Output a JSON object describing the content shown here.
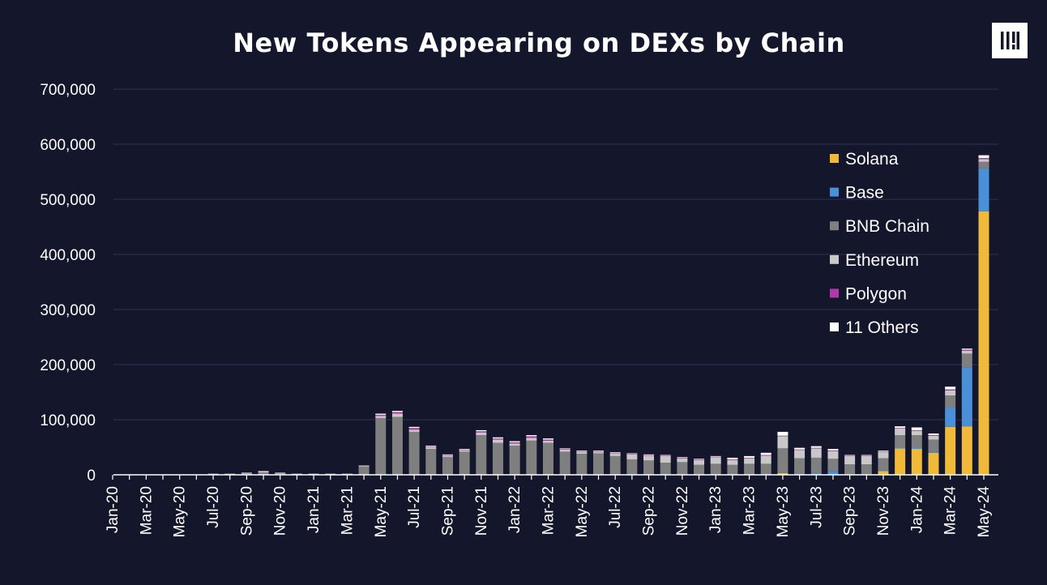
{
  "chart_data": {
    "type": "bar",
    "stacked": true,
    "title": "New Tokens Appearing on DEXs by Chain",
    "xlabel": "",
    "ylabel": "",
    "ylim": [
      0,
      700000
    ],
    "yticks": [
      0,
      100000,
      200000,
      300000,
      400000,
      500000,
      600000,
      700000
    ],
    "ytick_labels": [
      "0",
      "100,000",
      "200,000",
      "300,000",
      "400,000",
      "500,000",
      "600,000",
      "700,000"
    ],
    "grid": true,
    "legend_position": "right",
    "categories": [
      "Jan-20",
      "Feb-20",
      "Mar-20",
      "Apr-20",
      "May-20",
      "Jun-20",
      "Jul-20",
      "Aug-20",
      "Sep-20",
      "Oct-20",
      "Nov-20",
      "Dec-20",
      "Jan-21",
      "Feb-21",
      "Mar-21",
      "Apr-21",
      "May-21",
      "Jun-21",
      "Jul-21",
      "Aug-21",
      "Sep-21",
      "Oct-21",
      "Nov-21",
      "Dec-21",
      "Jan-22",
      "Feb-22",
      "Mar-22",
      "Apr-22",
      "May-22",
      "Jun-22",
      "Jul-22",
      "Aug-22",
      "Sep-22",
      "Oct-22",
      "Nov-22",
      "Dec-22",
      "Jan-23",
      "Feb-23",
      "Mar-23",
      "Apr-23",
      "May-23",
      "Jun-23",
      "Jul-23",
      "Aug-23",
      "Sep-23",
      "Oct-23",
      "Nov-23",
      "Dec-23",
      "Jan-24",
      "Feb-24",
      "Mar-24",
      "Apr-24",
      "May-24"
    ],
    "tick_labels": [
      "Jan-20",
      "Mar-20",
      "May-20",
      "Jul-20",
      "Sep-20",
      "Nov-20",
      "Jan-21",
      "Mar-21",
      "May-21",
      "Jul-21",
      "Sep-21",
      "Nov-21",
      "Jan-22",
      "Mar-22",
      "May-22",
      "Jul-22",
      "Sep-22",
      "Nov-22",
      "Jan-23",
      "Mar-23",
      "May-23",
      "Jul-23",
      "Sep-23",
      "Nov-23",
      "Jan-24",
      "Mar-24",
      "May-24"
    ],
    "series": [
      {
        "name": "Solana",
        "color": "#f0b93a",
        "values": [
          0,
          0,
          0,
          0,
          0,
          0,
          0,
          0,
          0,
          0,
          0,
          0,
          0,
          0,
          0,
          0,
          0,
          0,
          0,
          0,
          0,
          0,
          0,
          0,
          0,
          0,
          0,
          0,
          0,
          0,
          0,
          0,
          0,
          0,
          0,
          0,
          0,
          0,
          0,
          0,
          3000,
          0,
          0,
          0,
          0,
          0,
          7000,
          48000,
          47000,
          40000,
          87000,
          88000,
          478000
        ]
      },
      {
        "name": "Base",
        "color": "#4a90d9",
        "values": [
          0,
          0,
          0,
          0,
          0,
          0,
          0,
          0,
          0,
          0,
          0,
          0,
          0,
          0,
          0,
          0,
          0,
          0,
          0,
          0,
          0,
          0,
          0,
          0,
          0,
          0,
          0,
          0,
          0,
          0,
          0,
          0,
          0,
          0,
          0,
          0,
          0,
          0,
          0,
          0,
          0,
          0,
          3000,
          7000,
          1000,
          1000,
          1000,
          2000,
          3000,
          2000,
          35000,
          107000,
          78000
        ]
      },
      {
        "name": "BNB Chain",
        "color": "#7f7f7f",
        "values": [
          0,
          0,
          0,
          0,
          0,
          0,
          1000,
          1000,
          2000,
          4000,
          2000,
          1000,
          1000,
          1000,
          1000,
          15000,
          103000,
          105000,
          78000,
          47000,
          32000,
          42000,
          72000,
          58000,
          53000,
          62000,
          58000,
          42000,
          38000,
          39000,
          34000,
          28000,
          26000,
          22000,
          23000,
          18000,
          20000,
          18000,
          20000,
          20000,
          45000,
          30000,
          28000,
          22000,
          18000,
          18000,
          22000,
          22000,
          22000,
          22000,
          22000,
          25000,
          12000
        ]
      },
      {
        "name": "Ethereum",
        "color": "#c8c8c8",
        "values": [
          0,
          0,
          0,
          0,
          0,
          0,
          1000,
          1000,
          2000,
          3000,
          2000,
          1000,
          1000,
          1000,
          1000,
          2000,
          4000,
          6000,
          4000,
          4000,
          3000,
          3000,
          5000,
          6000,
          4000,
          5000,
          4000,
          4000,
          4000,
          3000,
          5000,
          9000,
          9000,
          12000,
          7000,
          9000,
          12000,
          9000,
          10000,
          15000,
          22000,
          15000,
          17000,
          14000,
          15000,
          15000,
          12000,
          12000,
          8000,
          7000,
          9000,
          5000,
          5000
        ]
      },
      {
        "name": "Polygon",
        "color": "#b03aa8",
        "values": [
          0,
          0,
          0,
          0,
          0,
          0,
          0,
          0,
          0,
          0,
          0,
          0,
          0,
          0,
          0,
          0,
          2000,
          3000,
          3000,
          1000,
          1000,
          1000,
          2000,
          2000,
          2000,
          3000,
          2000,
          1000,
          1000,
          1000,
          1000,
          1000,
          1000,
          1000,
          1000,
          1000,
          1000,
          1000,
          1000,
          1000,
          1000,
          1000,
          1000,
          1000,
          1000,
          1000,
          1000,
          1000,
          1000,
          1000,
          2000,
          2000,
          2000
        ]
      },
      {
        "name": "11 Others",
        "color": "#ffffff",
        "values": [
          0,
          0,
          0,
          0,
          0,
          0,
          0,
          0,
          0,
          0,
          0,
          0,
          0,
          0,
          0,
          0,
          2000,
          2000,
          2000,
          1000,
          1000,
          1000,
          2000,
          2000,
          2000,
          2000,
          2000,
          1000,
          1000,
          1000,
          1000,
          1000,
          1000,
          1000,
          1000,
          1000,
          1000,
          3000,
          3000,
          4000,
          7000,
          3000,
          3000,
          3000,
          1000,
          1000,
          1000,
          3000,
          5000,
          3000,
          5000,
          2000,
          5000
        ]
      }
    ]
  },
  "logo_icon": "bars-logo-icon"
}
